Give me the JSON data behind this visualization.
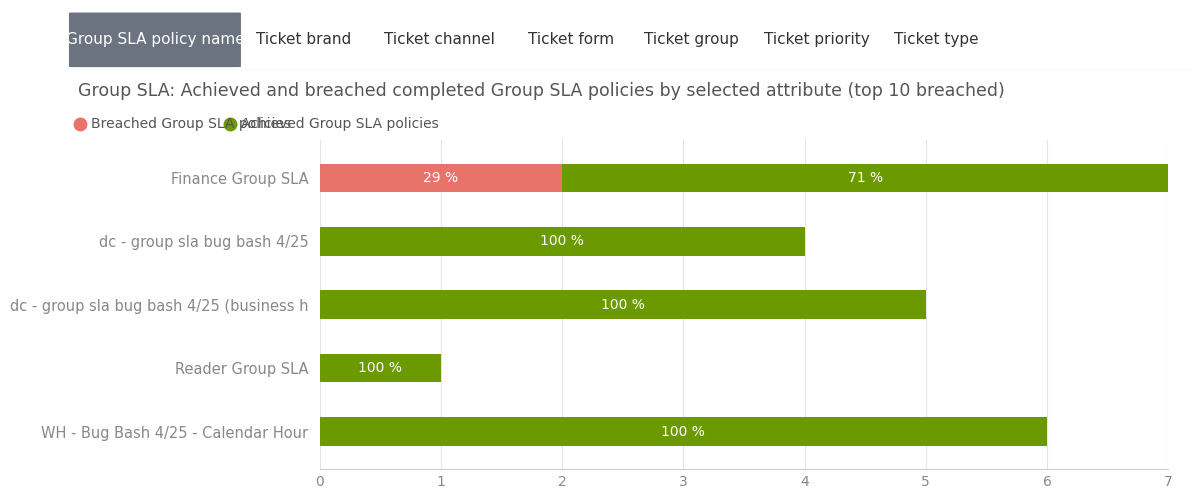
{
  "title": "Group SLA: Achieved and breached completed Group SLA policies by selected attribute (top 10 breached)",
  "tabs": [
    "Group SLA policy name",
    "Ticket brand",
    "Ticket channel",
    "Ticket form",
    "Ticket group",
    "Ticket priority",
    "Ticket type"
  ],
  "active_tab": "Group SLA policy name",
  "categories": [
    "Finance Group SLA",
    "dc - group sla bug bash 4/25",
    "dc - group sla bug bash 4/25 (business h",
    "Reader Group SLA",
    "WH - Bug Bash 4/25 - Calendar Hour"
  ],
  "breached_values": [
    2.0,
    0,
    0,
    0,
    0
  ],
  "achieved_values": [
    5.0,
    4.0,
    5.0,
    1.0,
    6.0
  ],
  "breached_pct": [
    29,
    0,
    0,
    0,
    0
  ],
  "achieved_pct": [
    71,
    100,
    100,
    100,
    100
  ],
  "breached_color": "#e8736a",
  "achieved_color": "#6b9a00",
  "legend_breached": "Breached Group SLA policies",
  "legend_achieved": "Achieved Group SLA policies",
  "xlim": [
    0,
    7
  ],
  "xticks": [
    0,
    1,
    2,
    3,
    4,
    5,
    6,
    7
  ],
  "background_color": "#ffffff",
  "tab_active_color": "#6b7280",
  "tab_text_active": "#ffffff",
  "tab_text_inactive": "#333333",
  "title_color": "#555555",
  "label_color": "#888888",
  "bar_height": 0.45,
  "bar_text_color": "#ffffff",
  "bar_fontsize": 10,
  "label_fontsize": 10.5,
  "title_fontsize": 12.5,
  "tab_fontsize": 11
}
